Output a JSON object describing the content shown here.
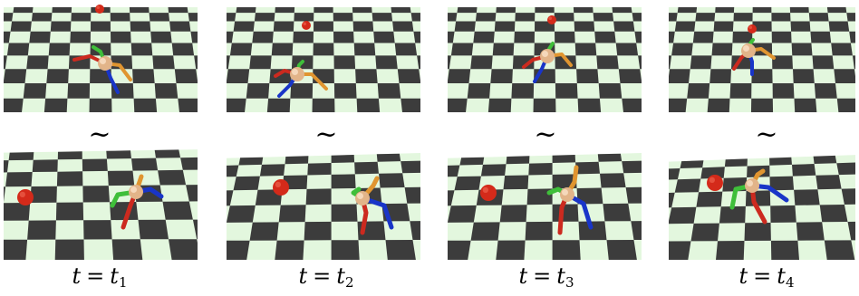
{
  "colors": {
    "floor_light": "#e3f7de",
    "floor_dark": "#3c3c3c",
    "ball": "#d42a1a",
    "body": "#e2b489",
    "leg_red": "#cc2a1f",
    "leg_blue": "#1935c8",
    "leg_orange": "#e09530",
    "leg_green": "#3fbf3a"
  },
  "columns": [
    {
      "tilde": "~",
      "label": {
        "lhs": "t",
        "rhs": "t",
        "sub": "1"
      }
    },
    {
      "tilde": "~",
      "label": {
        "lhs": "t",
        "rhs": "t",
        "sub": "2"
      }
    },
    {
      "tilde": "~",
      "label": {
        "lhs": "t",
        "rhs": "t",
        "sub": "3"
      }
    },
    {
      "tilde": "~",
      "label": {
        "lhs": "t",
        "rhs": "t",
        "sub": "4"
      }
    }
  ]
}
